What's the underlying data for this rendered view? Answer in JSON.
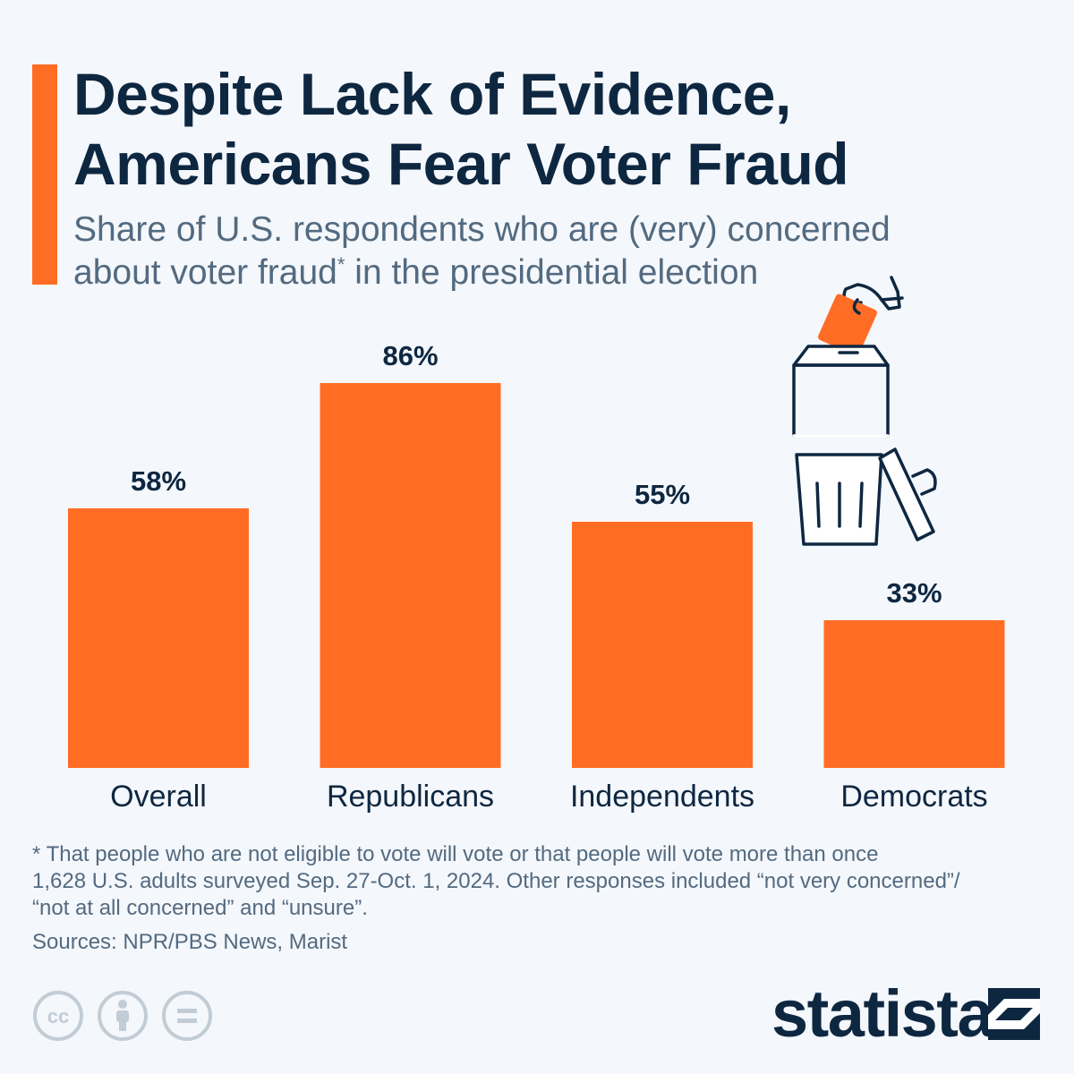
{
  "title_lines": [
    "Despite Lack of Evidence,",
    "Americans Fear Voter Fraud"
  ],
  "subtitle": {
    "line1": "Share of U.S. respondents who are (very) concerned",
    "line2_main": "about voter fraud",
    "line2_marker": "*",
    "line2_rest": " in the presidential election"
  },
  "colors": {
    "accent": "#ff6d25",
    "bar": "#ff6d25",
    "text_dark": "#0e2741",
    "text_muted": "#536a80",
    "background": "#f4f7fb"
  },
  "chart_data": {
    "type": "bar",
    "title": "Despite Lack of Evidence, Americans Fear Voter Fraud",
    "categories": [
      "Overall",
      "Republicans",
      "Independents",
      "Democrats"
    ],
    "values": [
      58,
      86,
      55,
      33
    ],
    "value_labels": [
      "58%",
      "86%",
      "55%",
      "33%"
    ],
    "unit": "%",
    "ylim": [
      0,
      100
    ],
    "grid": false,
    "xlabel": "",
    "ylabel": ""
  },
  "illustration": {
    "name": "ballot-box-trash-can-icon"
  },
  "footnotes": [
    "* That people who are not eligible to vote will vote or that people will vote more than once",
    "1,628 U.S. adults surveyed Sep. 27-Oct. 1, 2024. Other responses included “not very concerned”/",
    "“not at all concerned” and “unsure”."
  ],
  "sources": "Sources: NPR/PBS News, Marist",
  "license_icons": [
    "creative-commons-icon",
    "attribution-icon",
    "no-derivatives-icon"
  ],
  "brand": {
    "name": "statista"
  }
}
